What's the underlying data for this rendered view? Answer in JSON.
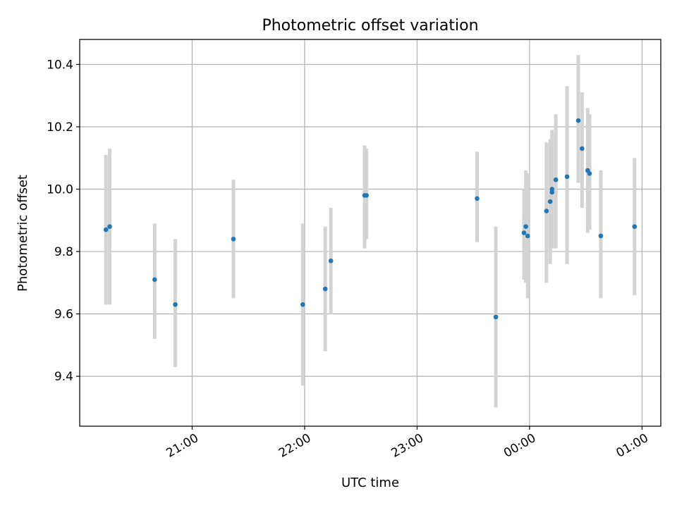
{
  "chart_data": {
    "type": "scatter",
    "title": "Photometric offset variation",
    "xlabel": "UTC time",
    "ylabel": "Photometric offset",
    "x_axis": "time (UTC, HH:MM)",
    "xlim": [
      "20:00",
      "01:10"
    ],
    "ylim": [
      9.24,
      10.48
    ],
    "grid": true,
    "xticks": [
      "21:00",
      "22:00",
      "23:00",
      "00:00",
      "01:00"
    ],
    "yticks": [
      9.4,
      9.6,
      9.8,
      10.0,
      10.2,
      10.4
    ],
    "series": [
      {
        "marker_color": "#1f77b4",
        "errorbar_color": "#d3d3d3",
        "points": [
          {
            "t": "20:14",
            "y": 9.87,
            "lo": 9.63,
            "hi": 10.11
          },
          {
            "t": "20:16",
            "y": 9.88,
            "lo": 9.63,
            "hi": 10.13
          },
          {
            "t": "20:40",
            "y": 9.71,
            "lo": 9.52,
            "hi": 9.89
          },
          {
            "t": "20:51",
            "y": 9.63,
            "lo": 9.43,
            "hi": 9.84
          },
          {
            "t": "21:22",
            "y": 9.84,
            "lo": 9.65,
            "hi": 10.03
          },
          {
            "t": "21:59",
            "y": 9.63,
            "lo": 9.37,
            "hi": 9.89
          },
          {
            "t": "22:11",
            "y": 9.68,
            "lo": 9.48,
            "hi": 9.88
          },
          {
            "t": "22:14",
            "y": 9.77,
            "lo": 9.6,
            "hi": 9.94
          },
          {
            "t": "22:32",
            "y": 9.98,
            "lo": 9.81,
            "hi": 10.14
          },
          {
            "t": "22:33",
            "y": 9.98,
            "lo": 9.84,
            "hi": 10.13
          },
          {
            "t": "23:32",
            "y": 9.97,
            "lo": 9.83,
            "hi": 10.12
          },
          {
            "t": "23:42",
            "y": 9.59,
            "lo": 9.3,
            "hi": 9.88
          },
          {
            "t": "23:57",
            "y": 9.86,
            "lo": 9.71,
            "hi": 10.0
          },
          {
            "t": "23:58",
            "y": 9.88,
            "lo": 9.7,
            "hi": 10.06
          },
          {
            "t": "23:59",
            "y": 9.85,
            "lo": 9.65,
            "hi": 10.05
          },
          {
            "t": "00:09",
            "y": 9.93,
            "lo": 9.7,
            "hi": 10.15
          },
          {
            "t": "00:11",
            "y": 9.96,
            "lo": 9.76,
            "hi": 10.16
          },
          {
            "t": "00:12",
            "y": 10.0,
            "lo": 9.81,
            "hi": 10.19
          },
          {
            "t": "00:12",
            "y": 9.99,
            "lo": 9.81,
            "hi": 10.18
          },
          {
            "t": "00:14",
            "y": 10.03,
            "lo": 9.81,
            "hi": 10.24
          },
          {
            "t": "00:20",
            "y": 10.04,
            "lo": 9.76,
            "hi": 10.33
          },
          {
            "t": "00:26",
            "y": 10.22,
            "lo": 10.02,
            "hi": 10.43
          },
          {
            "t": "00:28",
            "y": 10.13,
            "lo": 9.94,
            "hi": 10.31
          },
          {
            "t": "00:31",
            "y": 10.06,
            "lo": 9.86,
            "hi": 10.26
          },
          {
            "t": "00:32",
            "y": 10.05,
            "lo": 9.87,
            "hi": 10.24
          },
          {
            "t": "00:38",
            "y": 9.85,
            "lo": 9.65,
            "hi": 10.06
          },
          {
            "t": "00:56",
            "y": 9.88,
            "lo": 9.66,
            "hi": 10.1
          }
        ]
      }
    ]
  }
}
